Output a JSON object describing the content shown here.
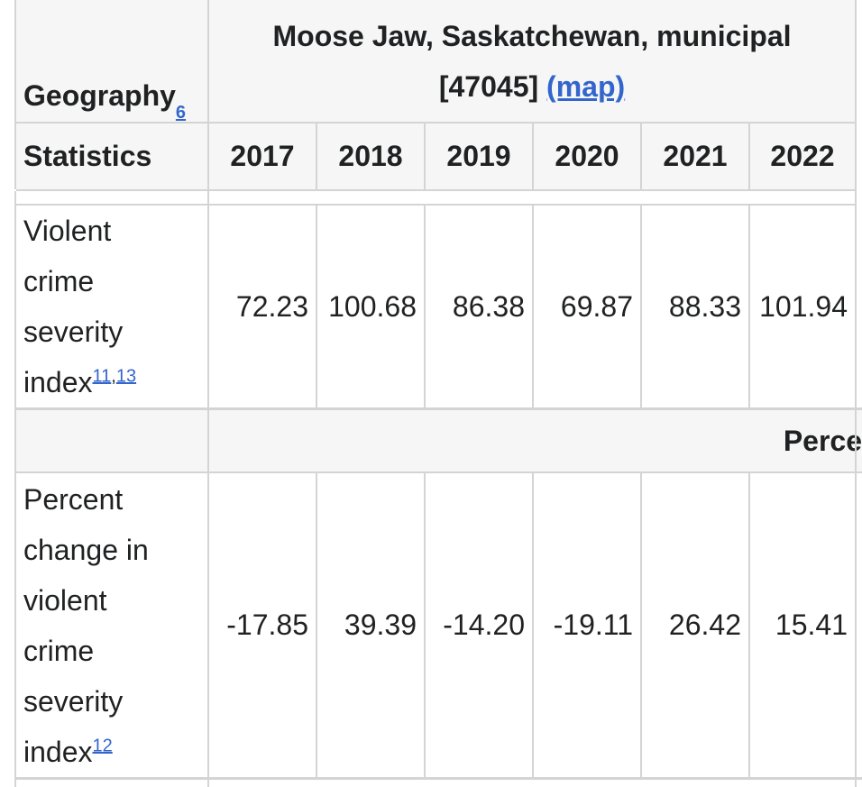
{
  "table": {
    "header": {
      "geography": "Geography",
      "geography_note": "6",
      "place": "Moose Jaw, Saskatchewan, municipal",
      "code": "[47045]",
      "map_link": "(map)",
      "statistics": "Statistics",
      "years": [
        "2017",
        "2018",
        "2019",
        "2020",
        "2021",
        "2022"
      ]
    },
    "rows": [
      {
        "label": "Violent crime severity index",
        "notes": [
          "11",
          "13"
        ],
        "note_separator": ",",
        "values": [
          "72.23",
          "100.68",
          "86.38",
          "69.87",
          "88.33",
          "101.94"
        ]
      },
      {
        "label": "Percent change in violent crime severity index",
        "notes": [
          "12"
        ],
        "values": [
          "-17.85",
          "39.39",
          "-14.20",
          "-19.11",
          "26.42",
          "15.41"
        ]
      }
    ],
    "section": "Perce"
  }
}
